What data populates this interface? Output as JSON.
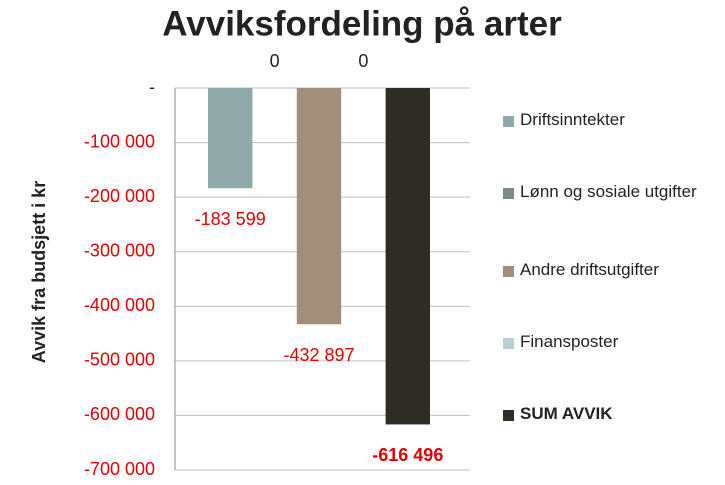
{
  "chart_data": {
    "type": "bar",
    "title": "Avviksfordeling på arter",
    "y_label": "Avvik fra budsjett i kr",
    "ylim": [
      -700000,
      0
    ],
    "yticks": [
      {
        "value": 0,
        "label": "-"
      },
      {
        "value": -100000,
        "label": "-100 000"
      },
      {
        "value": -200000,
        "label": "-200 000"
      },
      {
        "value": -300000,
        "label": "-300 000"
      },
      {
        "value": -400000,
        "label": "-400 000"
      },
      {
        "value": -500000,
        "label": "-500 000"
      },
      {
        "value": -600000,
        "label": "-600 000"
      },
      {
        "value": -700000,
        "label": "-700 000"
      }
    ],
    "grid": true,
    "legend": "right",
    "series": [
      {
        "name": "Driftsinntekter",
        "color": "#8ea9a9",
        "values": [
          -183599
        ],
        "value_labels": [
          "-183 599"
        ]
      },
      {
        "name": "Lønn og sosiale utgifter",
        "color": "#7a8a87",
        "values": [
          0
        ],
        "value_labels": [
          "0"
        ]
      },
      {
        "name": "Andre driftsutgifter",
        "color": "#9e8e7a",
        "values": [
          -432897
        ],
        "value_labels": [
          "-432 897"
        ]
      },
      {
        "name": "Finansposter",
        "color": "#b9cfcf",
        "values": [
          0
        ],
        "value_labels": [
          "0"
        ]
      },
      {
        "name": "SUM AVVIK",
        "color": "#302d24",
        "values": [
          -616496
        ],
        "value_labels": [
          "-616 496"
        ]
      }
    ]
  }
}
